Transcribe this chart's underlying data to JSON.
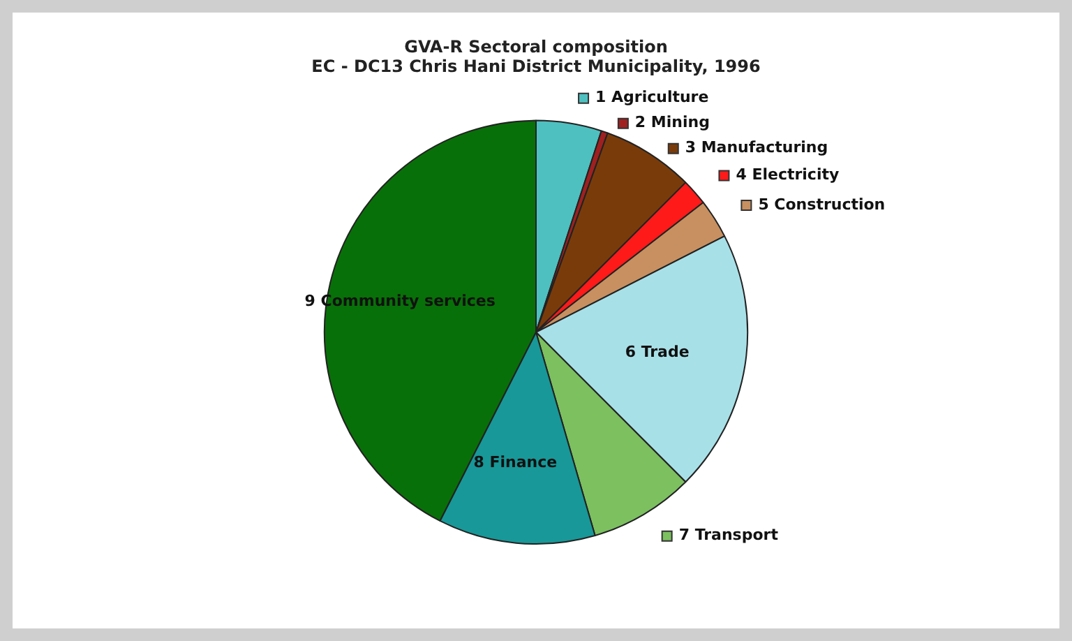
{
  "chart_data": {
    "type": "pie",
    "title": "GVA-R Sectoral composition",
    "subtitle": "EC - DC13 Chris Hani District Municipality, 1996",
    "categories": [
      "1 Agriculture",
      "2 Mining",
      "3 Manufacturing",
      "4 Electricity",
      "5 Construction",
      "6 Trade",
      "7 Transport",
      "8 Finance",
      "9 Community services"
    ],
    "values": [
      5,
      0.5,
      7,
      2,
      3,
      20,
      8,
      12,
      42.5
    ],
    "colors": [
      "#4fc0c0",
      "#a02020",
      "#7a3b0a",
      "#ff1a1a",
      "#c89060",
      "#a8e0e8",
      "#7cc060",
      "#189898",
      "#087008"
    ],
    "legend": "right"
  }
}
